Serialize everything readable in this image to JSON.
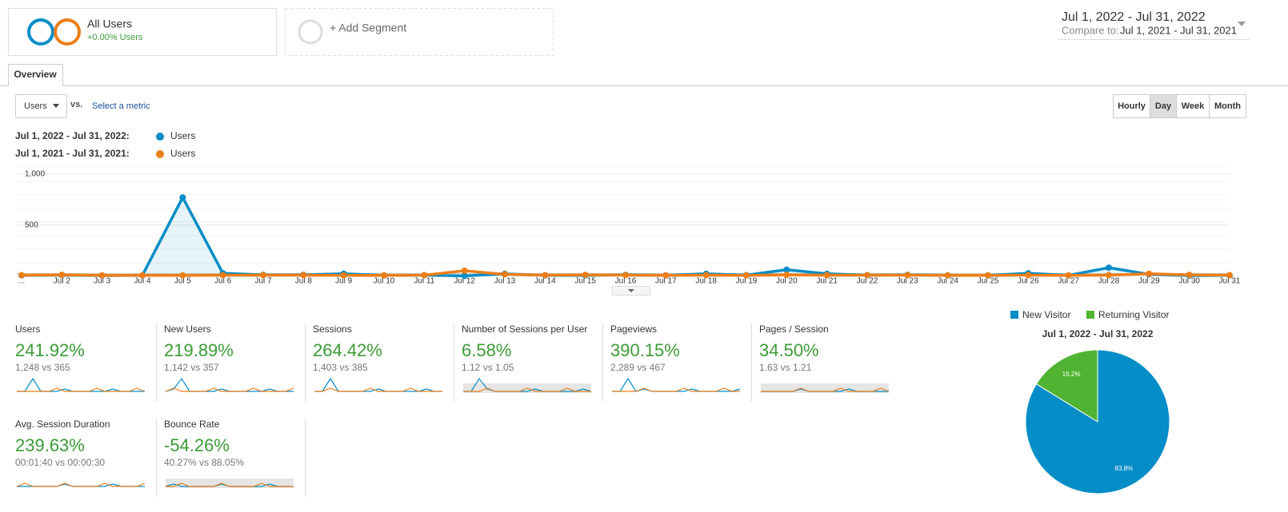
{
  "segments": {
    "active": {
      "name": "All Users",
      "change": "+0.00% Users"
    },
    "add": "+ Add Segment"
  },
  "date_range": {
    "current": "Jul 1, 2022 - Jul 31, 2022",
    "compare_label": "Compare to:",
    "compare": "Jul 1, 2021 - Jul 31, 2021"
  },
  "tabs": [
    "Overview"
  ],
  "metric_selector": {
    "metric": "Users",
    "vs": "vs.",
    "select": "Select a metric"
  },
  "granularity": {
    "options": [
      "Hourly",
      "Day",
      "Week",
      "Month"
    ],
    "active": 1
  },
  "chart_data": [
    {
      "type": "line",
      "categories": [
        "...",
        "Jul 2",
        "Jul 3",
        "Jul 4",
        "Jul 5",
        "Jul 6",
        "Jul 7",
        "Jul 8",
        "Jul 9",
        "Jul 10",
        "Jul 11",
        "Jul 12",
        "Jul 13",
        "Jul 14",
        "Jul 15",
        "Jul 16",
        "Jul 17",
        "Jul 18",
        "Jul 19",
        "Jul 20",
        "Jul 21",
        "Jul 22",
        "Jul 23",
        "Jul 24",
        "Jul 25",
        "Jul 26",
        "Jul 27",
        "Jul 28",
        "Jul 29",
        "Jul 30",
        "Jul 31"
      ],
      "series": [
        {
          "period": "Jul 1, 2022 - Jul 31, 2022:",
          "name": "Users",
          "color": "#058dc7",
          "area": true,
          "values": [
            10,
            12,
            8,
            10,
            770,
            30,
            15,
            15,
            25,
            10,
            12,
            5,
            25,
            10,
            10,
            15,
            10,
            25,
            12,
            65,
            25,
            12,
            15,
            10,
            10,
            30,
            10,
            85,
            20,
            8,
            10
          ]
        },
        {
          "period": "Jul 1, 2021 - Jul 31, 2021:",
          "name": "Users",
          "color": "#ed7e17",
          "values": [
            12,
            15,
            10,
            10,
            10,
            12,
            12,
            12,
            10,
            10,
            12,
            55,
            20,
            12,
            15,
            12,
            10,
            12,
            10,
            15,
            12,
            12,
            12,
            10,
            10,
            12,
            10,
            12,
            25,
            15,
            12
          ]
        }
      ],
      "ylim": [
        0,
        1060
      ],
      "yticks": [
        500,
        {
          "value": 1000,
          "label": "1,000"
        }
      ],
      "grid": true
    },
    {
      "type": "pie",
      "title": "Jul 1, 2022 - Jul 31, 2022",
      "categories": [
        "New Visitor",
        "Returning Visitor"
      ],
      "values": [
        83.8,
        16.2
      ],
      "value_labels": [
        "83.8%",
        "16.2%"
      ],
      "colors": [
        "#058dc7",
        "#50b432"
      ]
    }
  ],
  "metrics": [
    {
      "name": "Users",
      "change": "241.92%",
      "comparison": "1,248 vs 365"
    },
    {
      "name": "New Users",
      "change": "219.89%",
      "comparison": "1,142 vs 357"
    },
    {
      "name": "Sessions",
      "change": "264.42%",
      "comparison": "1,403 vs 385"
    },
    {
      "name": "Number of Sessions per User",
      "change": "6.58%",
      "comparison": "1.12 vs 1.05"
    },
    {
      "name": "Pageviews",
      "change": "390.15%",
      "comparison": "2,289 vs 467"
    },
    {
      "name": "Pages / Session",
      "change": "34.50%",
      "comparison": "1.63 vs 1.21"
    },
    {
      "name": "Avg. Session Duration",
      "change": "239.63%",
      "comparison": "00:01:40 vs 00:00:30"
    },
    {
      "name": "Bounce Rate",
      "change": "-54.26%",
      "comparison": "40.27% vs 88.05%"
    }
  ]
}
